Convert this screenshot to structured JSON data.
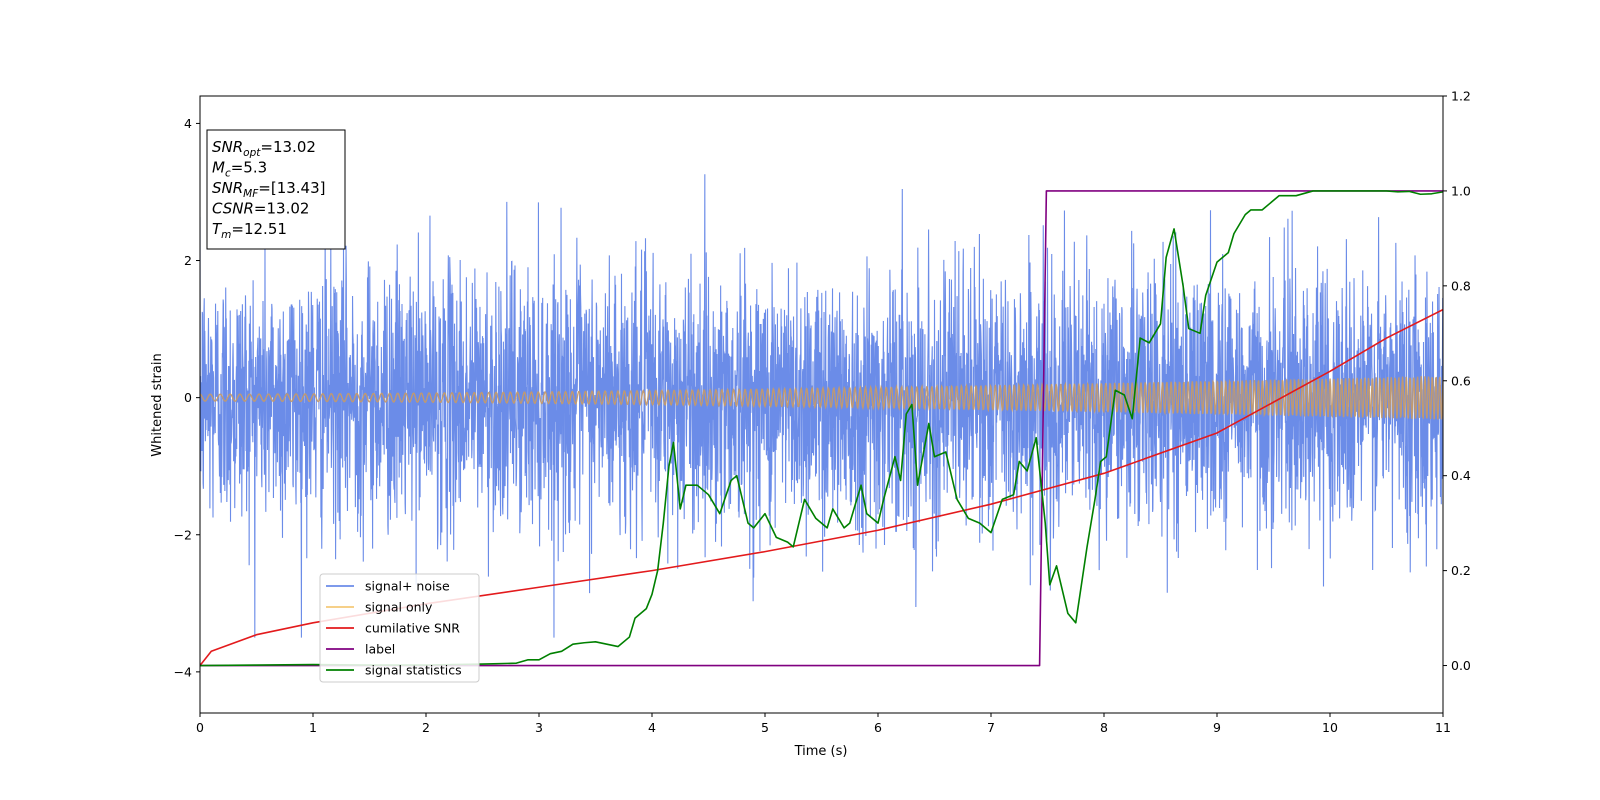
{
  "chart_data": {
    "type": "line",
    "xlabel": "Time (s)",
    "ylabel_left": "Whitened strain",
    "xlim": [
      0,
      11
    ],
    "ylim_left": [
      -4.6,
      4.4
    ],
    "ylim_right": [
      -0.1,
      1.2
    ],
    "xticks": [
      "0",
      "1",
      "2",
      "3",
      "4",
      "5",
      "6",
      "7",
      "8",
      "9",
      "10",
      "11"
    ],
    "yticks_left": [
      "4",
      "2",
      "0",
      "−2",
      "−4"
    ],
    "yticks_right": [
      "1.2",
      "1.0",
      "0.8",
      "0.6",
      "0.4",
      "0.2",
      "0.0"
    ],
    "grid": false,
    "legend_position": "lower-left",
    "info_box": {
      "lines": [
        {
          "base": "SNR",
          "sub": "opt",
          "rest": "=13.02"
        },
        {
          "base": "M",
          "sub": "c",
          "rest": "=5.3"
        },
        {
          "base": "SNR",
          "sub": "MF",
          "rest": "=[13.43]"
        },
        {
          "base": "CSNR",
          "sub": "",
          "rest": "=13.02"
        },
        {
          "base": "T",
          "sub": "m",
          "rest": "=12.51"
        }
      ]
    },
    "series": [
      {
        "name": "signal+ noise",
        "color": "#6b8ce8",
        "axis": "left",
        "kind": "noise",
        "std": 0.95,
        "range": [
          -3.5,
          4.0
        ]
      },
      {
        "name": "signal only",
        "color": "#f5c978",
        "axis": "left",
        "kind": "chirp",
        "amplitude_start": 0.05,
        "amplitude_end": 0.32
      },
      {
        "name": "cumilative SNR",
        "color": "#e31a1c",
        "axis": "right",
        "x": [
          0,
          0.1,
          0.5,
          1,
          2,
          3,
          4,
          5,
          6,
          7,
          8,
          9,
          10,
          10.5,
          11
        ],
        "y": [
          0.0,
          0.03,
          0.065,
          0.09,
          0.13,
          0.165,
          0.2,
          0.24,
          0.285,
          0.34,
          0.405,
          0.49,
          0.62,
          0.69,
          0.75
        ]
      },
      {
        "name": "label",
        "color": "#800080",
        "axis": "right",
        "x": [
          0,
          7.43,
          7.49,
          11
        ],
        "y": [
          0.0,
          0.0,
          1.0,
          1.0
        ]
      },
      {
        "name": "signal statistics",
        "color": "#008000",
        "axis": "right",
        "x": [
          0,
          0.5,
          1,
          1.5,
          2,
          2.5,
          2.8,
          2.9,
          3.0,
          3.1,
          3.2,
          3.3,
          3.4,
          3.5,
          3.6,
          3.7,
          3.8,
          3.85,
          3.95,
          4.0,
          4.05,
          4.1,
          4.15,
          4.19,
          4.25,
          4.3,
          4.4,
          4.5,
          4.6,
          4.7,
          4.75,
          4.85,
          4.9,
          5.0,
          5.1,
          5.2,
          5.25,
          5.35,
          5.45,
          5.55,
          5.6,
          5.7,
          5.75,
          5.85,
          5.9,
          6.0,
          6.05,
          6.15,
          6.2,
          6.25,
          6.3,
          6.35,
          6.45,
          6.5,
          6.6,
          6.7,
          6.8,
          6.9,
          7.0,
          7.1,
          7.2,
          7.25,
          7.32,
          7.4,
          7.48,
          7.52,
          7.58,
          7.62,
          7.68,
          7.75,
          7.85,
          7.92,
          7.97,
          8.02,
          8.1,
          8.18,
          8.25,
          8.32,
          8.4,
          8.5,
          8.55,
          8.62,
          8.7,
          8.75,
          8.85,
          8.9,
          9.0,
          9.1,
          9.15,
          9.25,
          9.3,
          9.4,
          9.55,
          9.7,
          9.85,
          10.0,
          10.2,
          10.4,
          10.5,
          10.6,
          10.7,
          10.8,
          10.9,
          11.0
        ],
        "y": [
          0.0,
          0.001,
          0.002,
          0.001,
          0.001,
          0.003,
          0.005,
          0.012,
          0.012,
          0.025,
          0.03,
          0.045,
          0.048,
          0.05,
          0.045,
          0.04,
          0.06,
          0.1,
          0.12,
          0.15,
          0.2,
          0.3,
          0.42,
          0.47,
          0.33,
          0.38,
          0.38,
          0.36,
          0.32,
          0.39,
          0.4,
          0.3,
          0.29,
          0.32,
          0.27,
          0.26,
          0.25,
          0.35,
          0.31,
          0.29,
          0.33,
          0.29,
          0.3,
          0.38,
          0.32,
          0.3,
          0.35,
          0.44,
          0.39,
          0.53,
          0.55,
          0.38,
          0.51,
          0.44,
          0.45,
          0.35,
          0.31,
          0.3,
          0.28,
          0.35,
          0.36,
          0.43,
          0.41,
          0.48,
          0.3,
          0.17,
          0.21,
          0.17,
          0.11,
          0.09,
          0.25,
          0.35,
          0.43,
          0.44,
          0.58,
          0.57,
          0.52,
          0.69,
          0.68,
          0.72,
          0.86,
          0.92,
          0.8,
          0.71,
          0.7,
          0.78,
          0.85,
          0.87,
          0.91,
          0.95,
          0.96,
          0.96,
          0.99,
          0.99,
          1.0,
          1.0,
          1.0,
          1.0,
          1.0,
          0.998,
          0.999,
          0.993,
          0.994,
          0.998
        ]
      }
    ]
  }
}
